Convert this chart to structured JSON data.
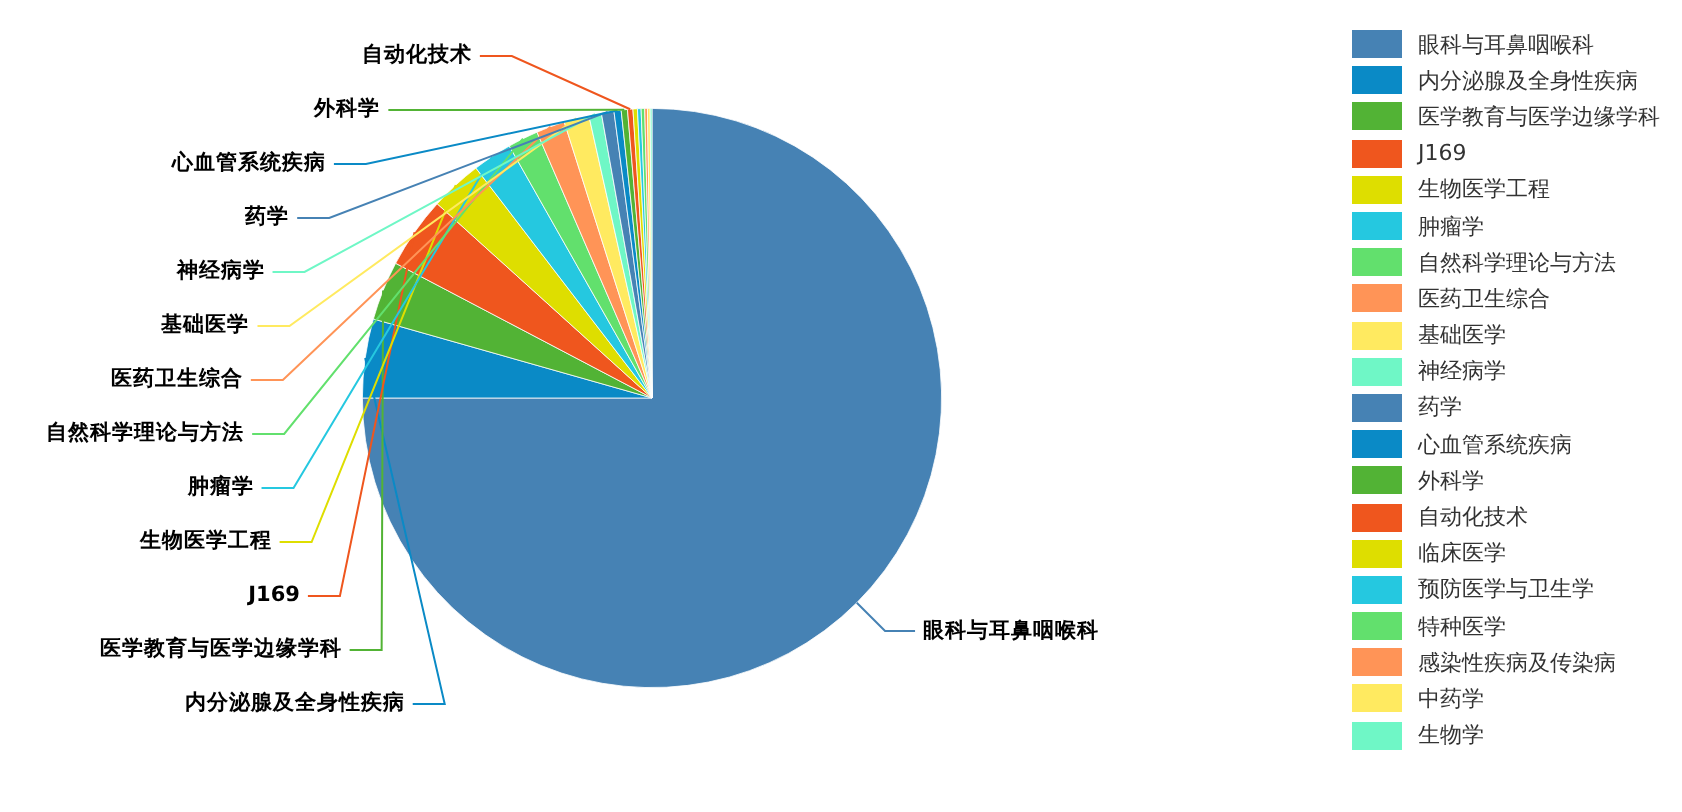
{
  "chart_data": {
    "type": "pie",
    "legend": "right",
    "categories": [
      "眼科与耳鼻咽喉科",
      "内分泌腺及全身性疾病",
      "医学教育与医学边缘学科",
      "J169",
      "生物医学工程",
      "肿瘤学",
      "自然科学理论与方法",
      "医药卫生综合",
      "基础医学",
      "神经病学",
      "药学",
      "心血管系统疾病",
      "外科学",
      "自动化技术",
      "临床医学",
      "预防医学与卫生学",
      "特种医学",
      "感染性疾病及传染病",
      "中药学",
      "生物学"
    ],
    "values": [
      75,
      4.4,
      3.3,
      4.0,
      2.9,
      2.2,
      1.7,
      1.6,
      1.4,
      0.7,
      0.7,
      0.4,
      0.35,
      0.3,
      0.25,
      0.2,
      0.2,
      0.15,
      0.15,
      0.1
    ],
    "colors": [
      "#4682b4",
      "#0a8ac6",
      "#52b335",
      "#ef561e",
      "#dede00",
      "#25c8e0",
      "#62e06d",
      "#ff9457",
      "#ffea60",
      "#6ff7c6",
      "#4682b4",
      "#0a8ac6",
      "#52b335",
      "#ef561e",
      "#dede00",
      "#25c8e0",
      "#62e06d",
      "#ff9457",
      "#ffea60",
      "#6ff7c6"
    ]
  }
}
